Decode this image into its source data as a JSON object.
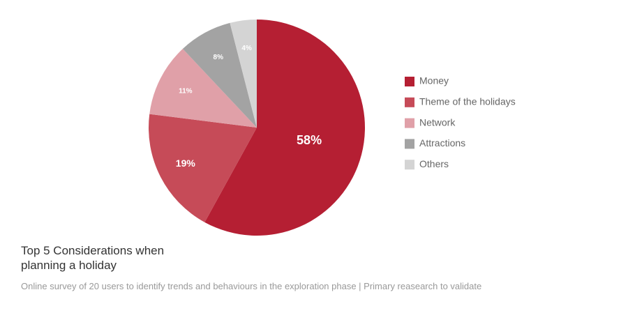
{
  "chart_data": {
    "type": "pie",
    "title": "Top 5 Considerations when planning a holiday",
    "subtitle": "Online survey of 20 users to identify trends and behaviours in the exploration phase | Primary reasearch to validate",
    "categories": [
      "Money",
      "Theme of the holidays",
      "Network",
      "Attractions",
      "Others"
    ],
    "values": [
      58,
      19,
      11,
      8,
      4
    ],
    "value_labels": [
      "58%",
      "19%",
      "11%",
      "8%",
      "4%"
    ],
    "colors": [
      "#b51f33",
      "#c64b58",
      "#e0a0a8",
      "#a3a3a3",
      "#d4d4d4"
    ],
    "legend": "right"
  }
}
